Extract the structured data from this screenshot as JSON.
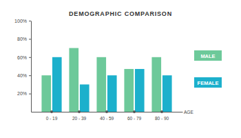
{
  "chart_data": {
    "type": "bar",
    "title": "DEMOGRAPHIC COMPARISON",
    "x_label": "AGE",
    "categories": [
      "0 - 19",
      "20 - 39",
      "40 - 59",
      "60 - 79",
      "80 - 90"
    ],
    "series": [
      {
        "name": "MALE",
        "color": "#6dc99a",
        "values": [
          40,
          70,
          60,
          47,
          60
        ]
      },
      {
        "name": "FEMALE",
        "color": "#1cb0cc",
        "values": [
          60,
          30,
          40,
          47,
          40
        ]
      }
    ],
    "ylim": [
      0,
      100
    ],
    "yticks": [
      {
        "value": 20,
        "label": "20%"
      },
      {
        "value": 40,
        "label": "40%"
      },
      {
        "value": 60,
        "label": "60%"
      },
      {
        "value": 80,
        "label": "80%"
      },
      {
        "value": 100,
        "label": "100%"
      }
    ],
    "grid": false,
    "legend": "right"
  }
}
